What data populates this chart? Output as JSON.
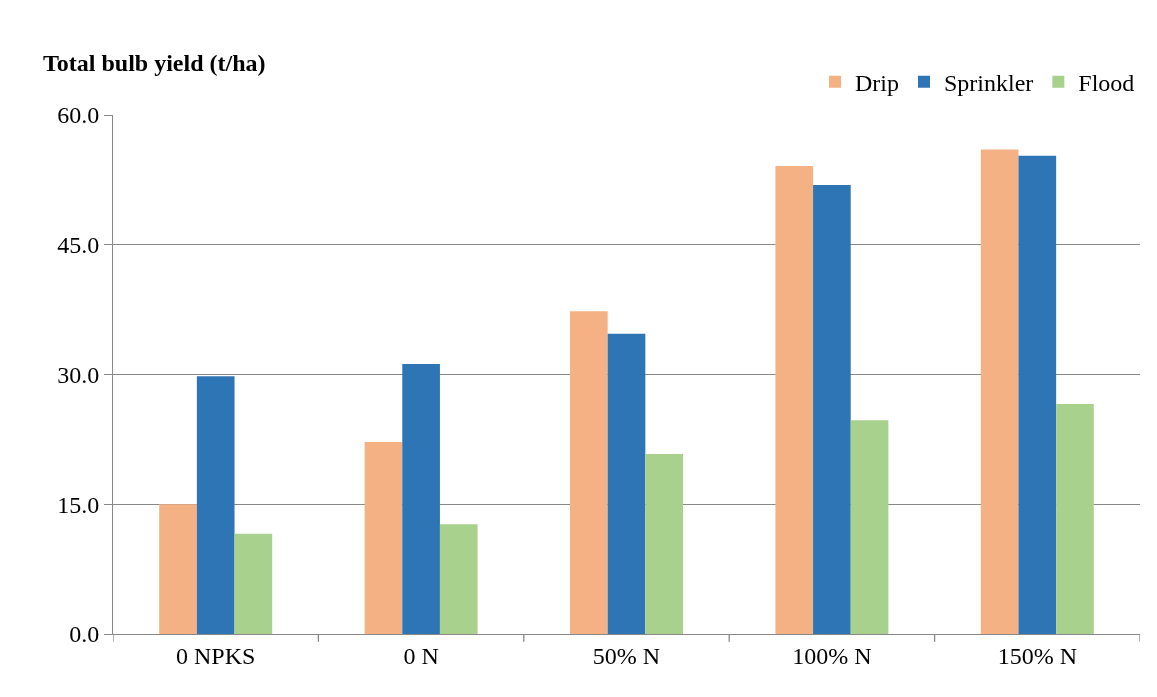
{
  "chart_data": {
    "type": "bar",
    "ylabel": "Total bulb yield (t/ha)",
    "categories": [
      "0 NPKS",
      "0 N",
      "50% N",
      "100% N",
      "150% N"
    ],
    "series": [
      {
        "name": "Drip",
        "color": "#f4b183",
        "values": [
          15.0,
          22.2,
          37.3,
          54.1,
          56.0
        ]
      },
      {
        "name": "Sprinkler",
        "color": "#2e75b6",
        "values": [
          29.8,
          31.2,
          34.7,
          51.9,
          55.3
        ]
      },
      {
        "name": "Flood",
        "color": "#a9d18e",
        "values": [
          11.6,
          12.7,
          20.8,
          24.7,
          26.6
        ]
      }
    ],
    "ylim": [
      0,
      60
    ],
    "yticks": [
      {
        "value": 0,
        "label": "0.0"
      },
      {
        "value": 15,
        "label": "15.0"
      },
      {
        "value": 30,
        "label": "30.0"
      },
      {
        "value": 45,
        "label": "45.0"
      },
      {
        "value": 60,
        "label": "60.0"
      }
    ],
    "grid": "y",
    "legend": "top right"
  }
}
